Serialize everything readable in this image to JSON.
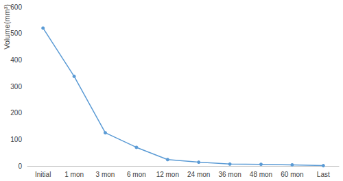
{
  "chart_data": {
    "type": "line",
    "y_label": "Volume(mm³)",
    "categories": [
      "Initial",
      "1 mon",
      "3 mon",
      "6 mon",
      "12 mon",
      "24 mon",
      "36 mon",
      "48 mon",
      "60 mon",
      "Last"
    ],
    "values": [
      520,
      338,
      125,
      70,
      24,
      14,
      7,
      6,
      4,
      1
    ],
    "color": "#5b9bd5",
    "marker": "circle",
    "line_style": "solid",
    "ylim": [
      0,
      600
    ],
    "yticks": [
      0,
      100,
      200,
      300,
      400,
      500,
      600
    ],
    "grid": false
  }
}
